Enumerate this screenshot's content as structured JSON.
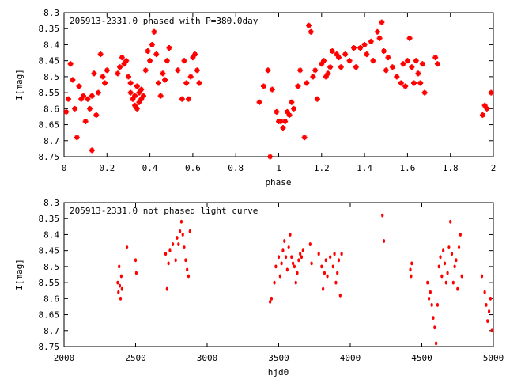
{
  "chart_data": [
    {
      "type": "scatter",
      "title": "205913-2331.0 phased with P=380.0day",
      "xlabel": "phase",
      "ylabel": "I[mag]",
      "xlim": [
        0,
        2
      ],
      "ylim": [
        8.75,
        8.3
      ],
      "y_inverted": true,
      "grid": false,
      "xticks": [
        "0",
        "0.2",
        "0.4",
        "0.6",
        "0.8",
        "1",
        "1.2",
        "1.4",
        "1.6",
        "1.8",
        "2"
      ],
      "yticks": [
        "8.3",
        "8.35",
        "8.4",
        "8.45",
        "8.5",
        "8.55",
        "8.6",
        "8.65",
        "8.7",
        "8.75"
      ],
      "marker_color": "#ff0000",
      "points": [
        [
          0.01,
          8.61
        ],
        [
          0.02,
          8.57
        ],
        [
          0.03,
          8.46
        ],
        [
          0.04,
          8.51
        ],
        [
          0.05,
          8.6
        ],
        [
          0.06,
          8.69
        ],
        [
          0.07,
          8.53
        ],
        [
          0.08,
          8.57
        ],
        [
          0.09,
          8.56
        ],
        [
          0.1,
          8.64
        ],
        [
          0.11,
          8.57
        ],
        [
          0.12,
          8.6
        ],
        [
          0.13,
          8.56
        ],
        [
          0.13,
          8.73
        ],
        [
          0.14,
          8.49
        ],
        [
          0.15,
          8.62
        ],
        [
          0.16,
          8.55
        ],
        [
          0.17,
          8.43
        ],
        [
          0.18,
          8.5
        ],
        [
          0.19,
          8.52
        ],
        [
          0.2,
          8.48
        ],
        [
          0.25,
          8.49
        ],
        [
          0.26,
          8.47
        ],
        [
          0.27,
          8.44
        ],
        [
          0.28,
          8.46
        ],
        [
          0.29,
          8.45
        ],
        [
          0.3,
          8.5
        ],
        [
          0.31,
          8.52
        ],
        [
          0.31,
          8.55
        ],
        [
          0.32,
          8.57
        ],
        [
          0.33,
          8.56
        ],
        [
          0.33,
          8.59
        ],
        [
          0.34,
          8.53
        ],
        [
          0.34,
          8.6
        ],
        [
          0.35,
          8.55
        ],
        [
          0.35,
          8.58
        ],
        [
          0.36,
          8.54
        ],
        [
          0.36,
          8.57
        ],
        [
          0.37,
          8.56
        ],
        [
          0.38,
          8.48
        ],
        [
          0.39,
          8.42
        ],
        [
          0.4,
          8.45
        ],
        [
          0.41,
          8.4
        ],
        [
          0.42,
          8.36
        ],
        [
          0.43,
          8.43
        ],
        [
          0.44,
          8.52
        ],
        [
          0.45,
          8.56
        ],
        [
          0.46,
          8.49
        ],
        [
          0.47,
          8.51
        ],
        [
          0.48,
          8.45
        ],
        [
          0.49,
          8.41
        ],
        [
          0.53,
          8.48
        ],
        [
          0.55,
          8.57
        ],
        [
          0.56,
          8.45
        ],
        [
          0.57,
          8.52
        ],
        [
          0.58,
          8.57
        ],
        [
          0.59,
          8.5
        ],
        [
          0.6,
          8.44
        ],
        [
          0.61,
          8.43
        ],
        [
          0.62,
          8.48
        ],
        [
          0.63,
          8.52
        ],
        [
          0.91,
          8.58
        ],
        [
          0.93,
          8.53
        ],
        [
          0.95,
          8.48
        ],
        [
          0.96,
          8.75
        ],
        [
          0.97,
          8.54
        ],
        [
          0.99,
          8.61
        ],
        [
          1.0,
          8.64
        ],
        [
          1.01,
          8.64
        ],
        [
          1.02,
          8.66
        ],
        [
          1.03,
          8.64
        ],
        [
          1.04,
          8.61
        ],
        [
          1.05,
          8.62
        ],
        [
          1.06,
          8.58
        ],
        [
          1.07,
          8.6
        ],
        [
          1.09,
          8.53
        ],
        [
          1.1,
          8.48
        ],
        [
          1.12,
          8.69
        ],
        [
          1.13,
          8.52
        ],
        [
          1.14,
          8.34
        ],
        [
          1.15,
          8.36
        ],
        [
          1.16,
          8.5
        ],
        [
          1.17,
          8.48
        ],
        [
          1.18,
          8.57
        ],
        [
          1.2,
          8.46
        ],
        [
          1.21,
          8.45
        ],
        [
          1.22,
          8.5
        ],
        [
          1.23,
          8.49
        ],
        [
          1.24,
          8.47
        ],
        [
          1.25,
          8.42
        ],
        [
          1.27,
          8.43
        ],
        [
          1.28,
          8.44
        ],
        [
          1.29,
          8.47
        ],
        [
          1.31,
          8.43
        ],
        [
          1.33,
          8.45
        ],
        [
          1.35,
          8.41
        ],
        [
          1.36,
          8.47
        ],
        [
          1.38,
          8.41
        ],
        [
          1.4,
          8.4
        ],
        [
          1.41,
          8.43
        ],
        [
          1.43,
          8.39
        ],
        [
          1.44,
          8.45
        ],
        [
          1.46,
          8.36
        ],
        [
          1.47,
          8.38
        ],
        [
          1.48,
          8.33
        ],
        [
          1.49,
          8.42
        ],
        [
          1.5,
          8.48
        ],
        [
          1.51,
          8.44
        ],
        [
          1.53,
          8.47
        ],
        [
          1.55,
          8.5
        ],
        [
          1.57,
          8.52
        ],
        [
          1.58,
          8.46
        ],
        [
          1.59,
          8.53
        ],
        [
          1.6,
          8.45
        ],
        [
          1.61,
          8.38
        ],
        [
          1.62,
          8.47
        ],
        [
          1.63,
          8.52
        ],
        [
          1.64,
          8.45
        ],
        [
          1.65,
          8.49
        ],
        [
          1.66,
          8.52
        ],
        [
          1.67,
          8.46
        ],
        [
          1.68,
          8.55
        ],
        [
          1.73,
          8.44
        ],
        [
          1.74,
          8.46
        ],
        [
          1.95,
          8.62
        ],
        [
          1.96,
          8.59
        ],
        [
          1.97,
          8.6
        ],
        [
          1.99,
          8.55
        ]
      ]
    },
    {
      "type": "scatter",
      "title": "205913-2331.0 not phased light curve",
      "xlabel": "hjd0",
      "ylabel": "I[mag]",
      "xlim": [
        2000,
        5000
      ],
      "ylim": [
        8.75,
        8.3
      ],
      "y_inverted": true,
      "grid": false,
      "xticks": [
        "2000",
        "2500",
        "3000",
        "3500",
        "4000",
        "4500",
        "5000"
      ],
      "yticks": [
        "8.3",
        "8.35",
        "8.4",
        "8.45",
        "8.5",
        "8.55",
        "8.6",
        "8.65",
        "8.7",
        "8.75"
      ],
      "marker_color": "#ff0000",
      "points": [
        [
          2375,
          8.55
        ],
        [
          2380,
          8.58
        ],
        [
          2385,
          8.5
        ],
        [
          2390,
          8.56
        ],
        [
          2395,
          8.6
        ],
        [
          2400,
          8.53
        ],
        [
          2405,
          8.57
        ],
        [
          2440,
          8.44
        ],
        [
          2500,
          8.48
        ],
        [
          2505,
          8.52
        ],
        [
          2710,
          8.46
        ],
        [
          2720,
          8.57
        ],
        [
          2730,
          8.49
        ],
        [
          2740,
          8.45
        ],
        [
          2760,
          8.43
        ],
        [
          2780,
          8.48
        ],
        [
          2790,
          8.41
        ],
        [
          2800,
          8.43
        ],
        [
          2810,
          8.39
        ],
        [
          2820,
          8.36
        ],
        [
          2830,
          8.4
        ],
        [
          2840,
          8.44
        ],
        [
          2850,
          8.48
        ],
        [
          2860,
          8.51
        ],
        [
          2870,
          8.53
        ],
        [
          2880,
          8.39
        ],
        [
          3440,
          8.61
        ],
        [
          3450,
          8.6
        ],
        [
          3470,
          8.55
        ],
        [
          3480,
          8.5
        ],
        [
          3500,
          8.47
        ],
        [
          3510,
          8.53
        ],
        [
          3520,
          8.49
        ],
        [
          3530,
          8.45
        ],
        [
          3540,
          8.42
        ],
        [
          3550,
          8.47
        ],
        [
          3560,
          8.51
        ],
        [
          3570,
          8.44
        ],
        [
          3580,
          8.4
        ],
        [
          3590,
          8.47
        ],
        [
          3600,
          8.49
        ],
        [
          3610,
          8.5
        ],
        [
          3620,
          8.55
        ],
        [
          3630,
          8.52
        ],
        [
          3640,
          8.48
        ],
        [
          3650,
          8.46
        ],
        [
          3660,
          8.47
        ],
        [
          3670,
          8.45
        ],
        [
          3720,
          8.43
        ],
        [
          3730,
          8.49
        ],
        [
          3780,
          8.46
        ],
        [
          3800,
          8.5
        ],
        [
          3810,
          8.57
        ],
        [
          3820,
          8.52
        ],
        [
          3830,
          8.48
        ],
        [
          3840,
          8.53
        ],
        [
          3860,
          8.47
        ],
        [
          3880,
          8.5
        ],
        [
          3890,
          8.46
        ],
        [
          3900,
          8.55
        ],
        [
          3910,
          8.52
        ],
        [
          3920,
          8.48
        ],
        [
          3930,
          8.59
        ],
        [
          3940,
          8.46
        ],
        [
          4225,
          8.34
        ],
        [
          4235,
          8.42
        ],
        [
          4420,
          8.51
        ],
        [
          4425,
          8.53
        ],
        [
          4430,
          8.49
        ],
        [
          4540,
          8.55
        ],
        [
          4550,
          8.6
        ],
        [
          4560,
          8.58
        ],
        [
          4570,
          8.62
        ],
        [
          4580,
          8.66
        ],
        [
          4590,
          8.69
        ],
        [
          4600,
          8.74
        ],
        [
          4610,
          8.62
        ],
        [
          4620,
          8.5
        ],
        [
          4630,
          8.47
        ],
        [
          4640,
          8.53
        ],
        [
          4650,
          8.45
        ],
        [
          4660,
          8.49
        ],
        [
          4670,
          8.55
        ],
        [
          4680,
          8.52
        ],
        [
          4690,
          8.44
        ],
        [
          4700,
          8.36
        ],
        [
          4710,
          8.46
        ],
        [
          4720,
          8.55
        ],
        [
          4730,
          8.5
        ],
        [
          4740,
          8.48
        ],
        [
          4750,
          8.57
        ],
        [
          4760,
          8.44
        ],
        [
          4770,
          8.4
        ],
        [
          4780,
          8.53
        ],
        [
          4920,
          8.53
        ],
        [
          4940,
          8.58
        ],
        [
          4950,
          8.62
        ],
        [
          4960,
          8.67
        ],
        [
          4970,
          8.64
        ],
        [
          4980,
          8.6
        ],
        [
          4990,
          8.7
        ]
      ]
    }
  ]
}
